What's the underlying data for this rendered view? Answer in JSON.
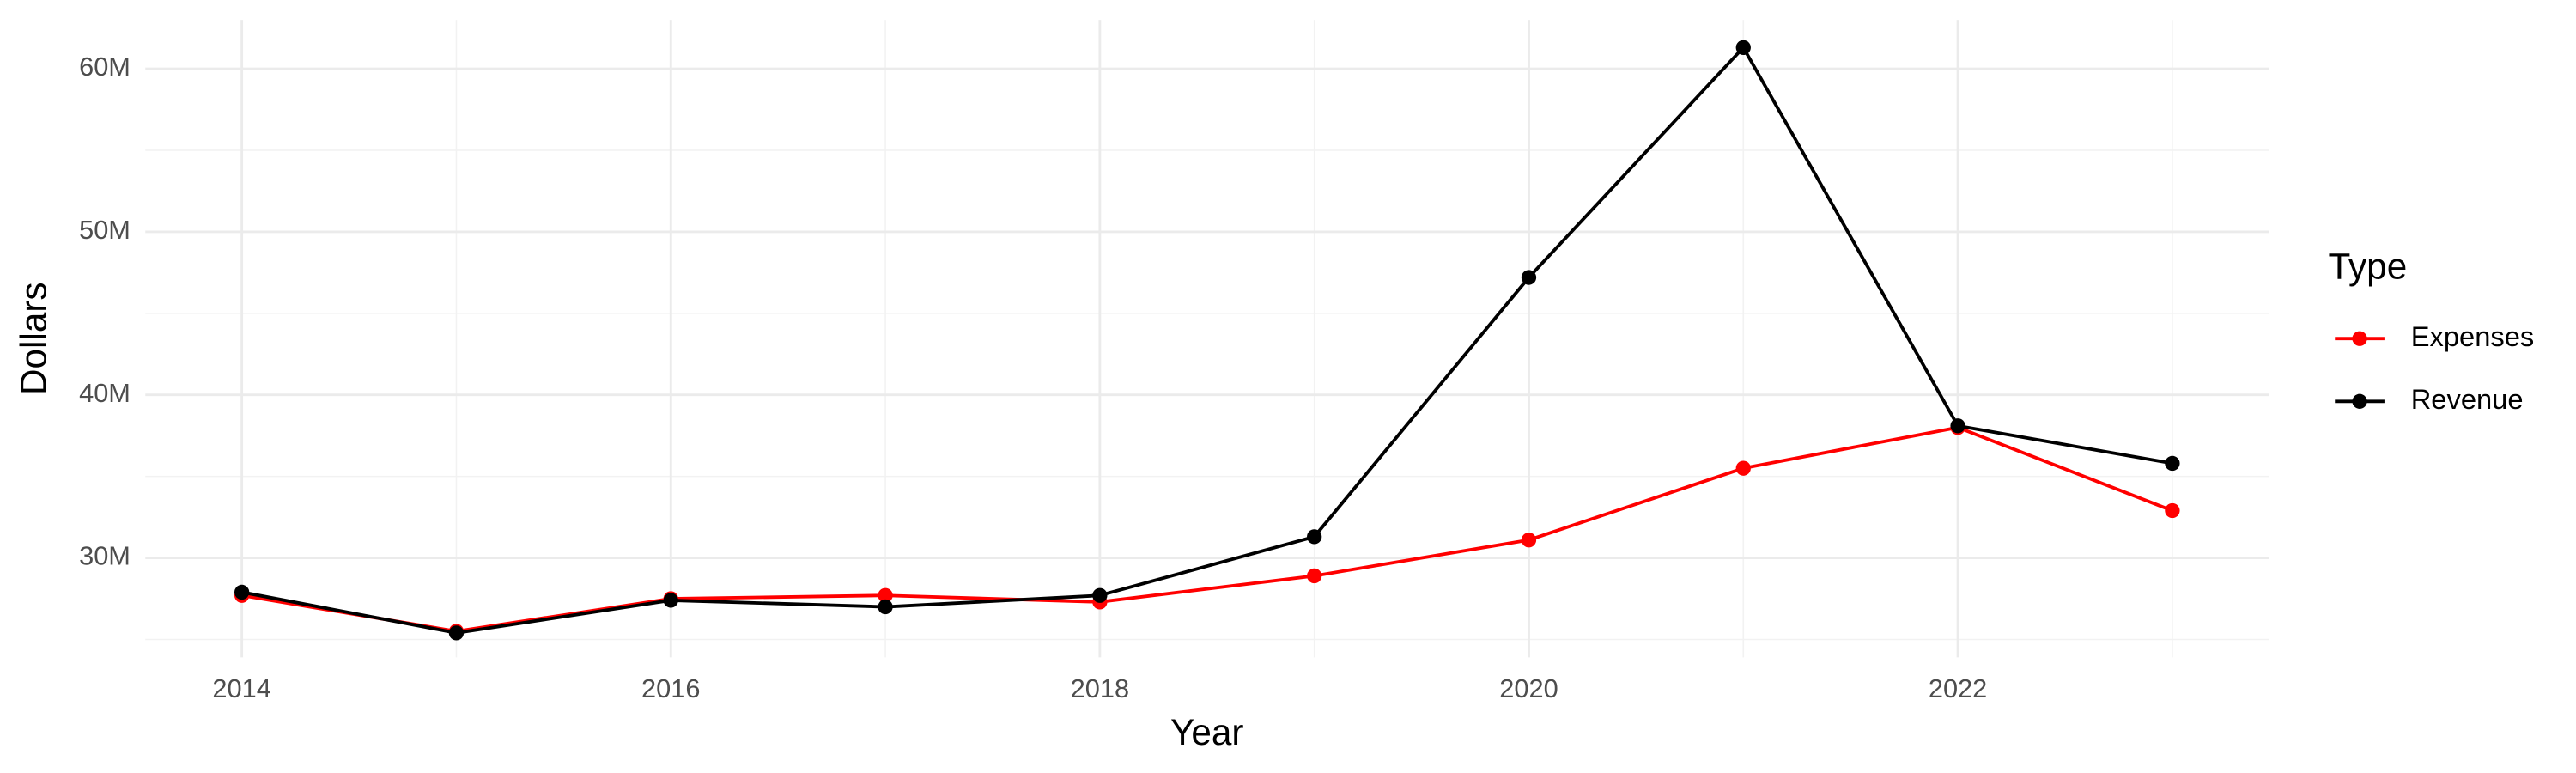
{
  "chart_data": {
    "type": "line",
    "x_label": "Year",
    "y_label": "Dollars",
    "legend_title": "Type",
    "x": [
      2014,
      2015,
      2016,
      2017,
      2018,
      2019,
      2020,
      2021,
      2022,
      2023
    ],
    "series": [
      {
        "name": "Expenses",
        "color": "#ff0000",
        "values": [
          27700000,
          25500000,
          27500000,
          27700000,
          27300000,
          28900000,
          31100000,
          35500000,
          38000000,
          32900000
        ]
      },
      {
        "name": "Revenue",
        "color": "#000000",
        "values": [
          27900000,
          25400000,
          27400000,
          27000000,
          27700000,
          31300000,
          47200000,
          61300000,
          38100000,
          35800000
        ]
      }
    ],
    "xlim": [
      2013.55,
      2023.45
    ],
    "xticks": [
      2014,
      2016,
      2018,
      2020,
      2022
    ],
    "ylim": [
      23900000,
      63000000
    ],
    "yticks": [
      {
        "value": 30000000,
        "label": "30M"
      },
      {
        "value": 40000000,
        "label": "40M"
      },
      {
        "value": 50000000,
        "label": "50M"
      },
      {
        "value": 60000000,
        "label": "60M"
      }
    ],
    "grid": true,
    "legend": "right"
  }
}
